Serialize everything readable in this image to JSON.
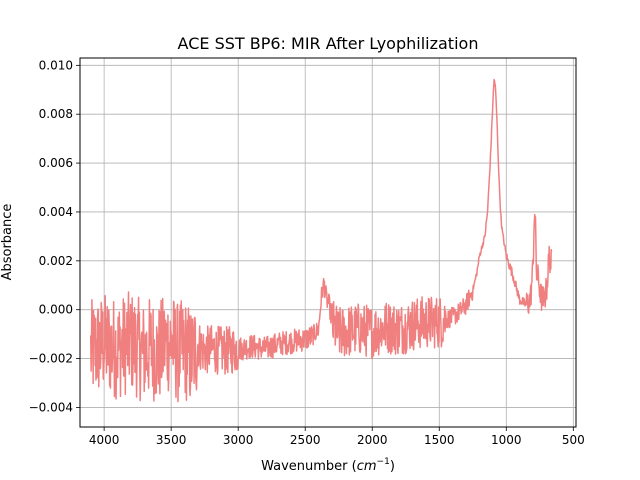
{
  "chart_data": {
    "type": "line",
    "title": "ACE SST BP6: MIR After Lyophilization",
    "xlabel_main": "Wavenumber (",
    "xlabel_unit": "cm",
    "xlabel_exp": "−1",
    "xlabel_close": ")",
    "ylabel": "Absorbance",
    "x_reversed": true,
    "xlim": [
      4180,
      480
    ],
    "ylim": [
      -0.0048,
      0.0103
    ],
    "grid": true,
    "line_color": "#f08080",
    "x_ticks": [
      4000,
      3500,
      3000,
      2500,
      2000,
      1500,
      1000,
      500
    ],
    "x_tick_labels": [
      "4000",
      "3500",
      "3000",
      "2500",
      "2000",
      "1500",
      "1000",
      "500"
    ],
    "y_ticks": [
      -0.004,
      -0.002,
      0.0,
      0.002,
      0.004,
      0.006,
      0.008,
      0.01
    ],
    "y_tick_labels": [
      "−0.004",
      "−0.002",
      "0.000",
      "0.002",
      "0.004",
      "0.006",
      "0.008",
      "0.010"
    ],
    "series": [
      {
        "x": [
          4100,
          4000,
          3900,
          3800,
          3700,
          3650,
          3600,
          3550,
          3500,
          3450,
          3400,
          3350,
          3300,
          3250,
          3200,
          3100,
          3000,
          2900,
          2800,
          2700,
          2600,
          2500,
          2450,
          2400,
          2380,
          2360,
          2340,
          2320,
          2300,
          2250,
          2200,
          2100,
          2000,
          1900,
          1800,
          1700,
          1600,
          1500,
          1400,
          1350,
          1300,
          1250,
          1220,
          1200,
          1180,
          1160,
          1140,
          1120,
          1100,
          1090,
          1080,
          1070,
          1060,
          1050,
          1040,
          1030,
          1000,
          950,
          900,
          850,
          820,
          800,
          790,
          780,
          775,
          760,
          740,
          720,
          700,
          690,
          680,
          670,
          660
        ],
        "y": [
          -0.0017,
          -0.0014,
          -0.0016,
          -0.0013,
          -0.0018,
          -0.0015,
          -0.0019,
          -0.0014,
          -0.0013,
          -0.0018,
          -0.0016,
          -0.002,
          -0.0014,
          -0.0017,
          -0.0016,
          -0.0017,
          -0.0016,
          -0.0015,
          -0.0016,
          -0.0014,
          -0.0013,
          -0.0012,
          -0.0011,
          -0.0008,
          0.0005,
          0.0011,
          0.0004,
          0.0002,
          -0.0006,
          -0.001,
          -0.0009,
          -0.0008,
          -0.0009,
          -0.0007,
          -0.0008,
          -0.0006,
          -0.0005,
          -0.0005,
          -0.0003,
          -0.0001,
          0.0002,
          0.0008,
          0.0015,
          0.0022,
          0.0026,
          0.003,
          0.004,
          0.006,
          0.0085,
          0.0095,
          0.009,
          0.0078,
          0.0062,
          0.0048,
          0.0038,
          0.0032,
          0.0022,
          0.0014,
          0.0004,
          0.0002,
          0.0004,
          0.0018,
          0.0042,
          0.003,
          0.0015,
          0.0012,
          0.0005,
          0.0004,
          0.0008,
          0.0015,
          0.0022,
          0.002,
          0.0018
        ]
      }
    ]
  }
}
